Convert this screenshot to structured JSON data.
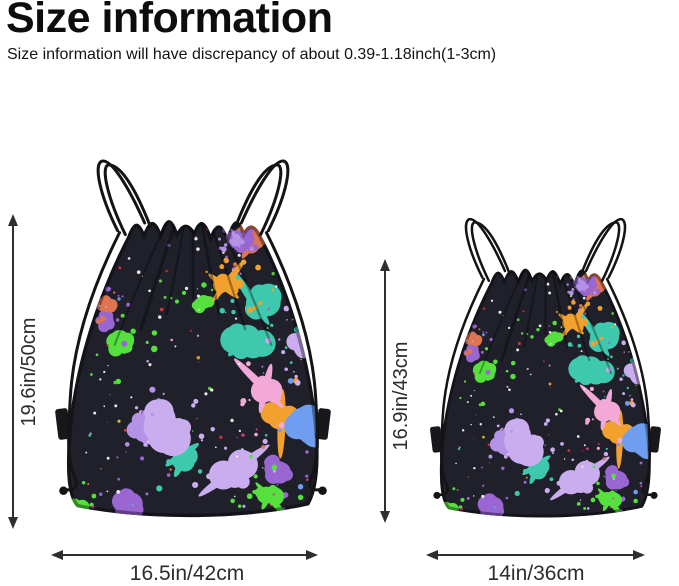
{
  "header": {
    "title": "Size information",
    "subtitle": "Size information will have discrepancy of about 0.39-1.18inch(1-3cm)"
  },
  "figures": [
    {
      "height_label": "19.6in/50cm",
      "width_label": "16.5in/42cm"
    },
    {
      "height_label": "16.9in/43cm",
      "width_label": "14in/36cm"
    }
  ],
  "bag": {
    "fabric_color": "#20202b",
    "cord_color": "#141414",
    "tab_color": "#17171c",
    "speckle_color": "#ffffff",
    "splatter_palette": [
      "#9a66d2",
      "#b493e6",
      "#caadee",
      "#3ec9ae",
      "#f2a12f",
      "#55e03e",
      "#ea3d9d",
      "#f2a9d8",
      "#e23637",
      "#df7450",
      "#f3cd36",
      "#6f9ef0"
    ]
  },
  "dimensions": {
    "arrow_color": "#2f2f2f",
    "label_color": "#2d2d2d"
  }
}
